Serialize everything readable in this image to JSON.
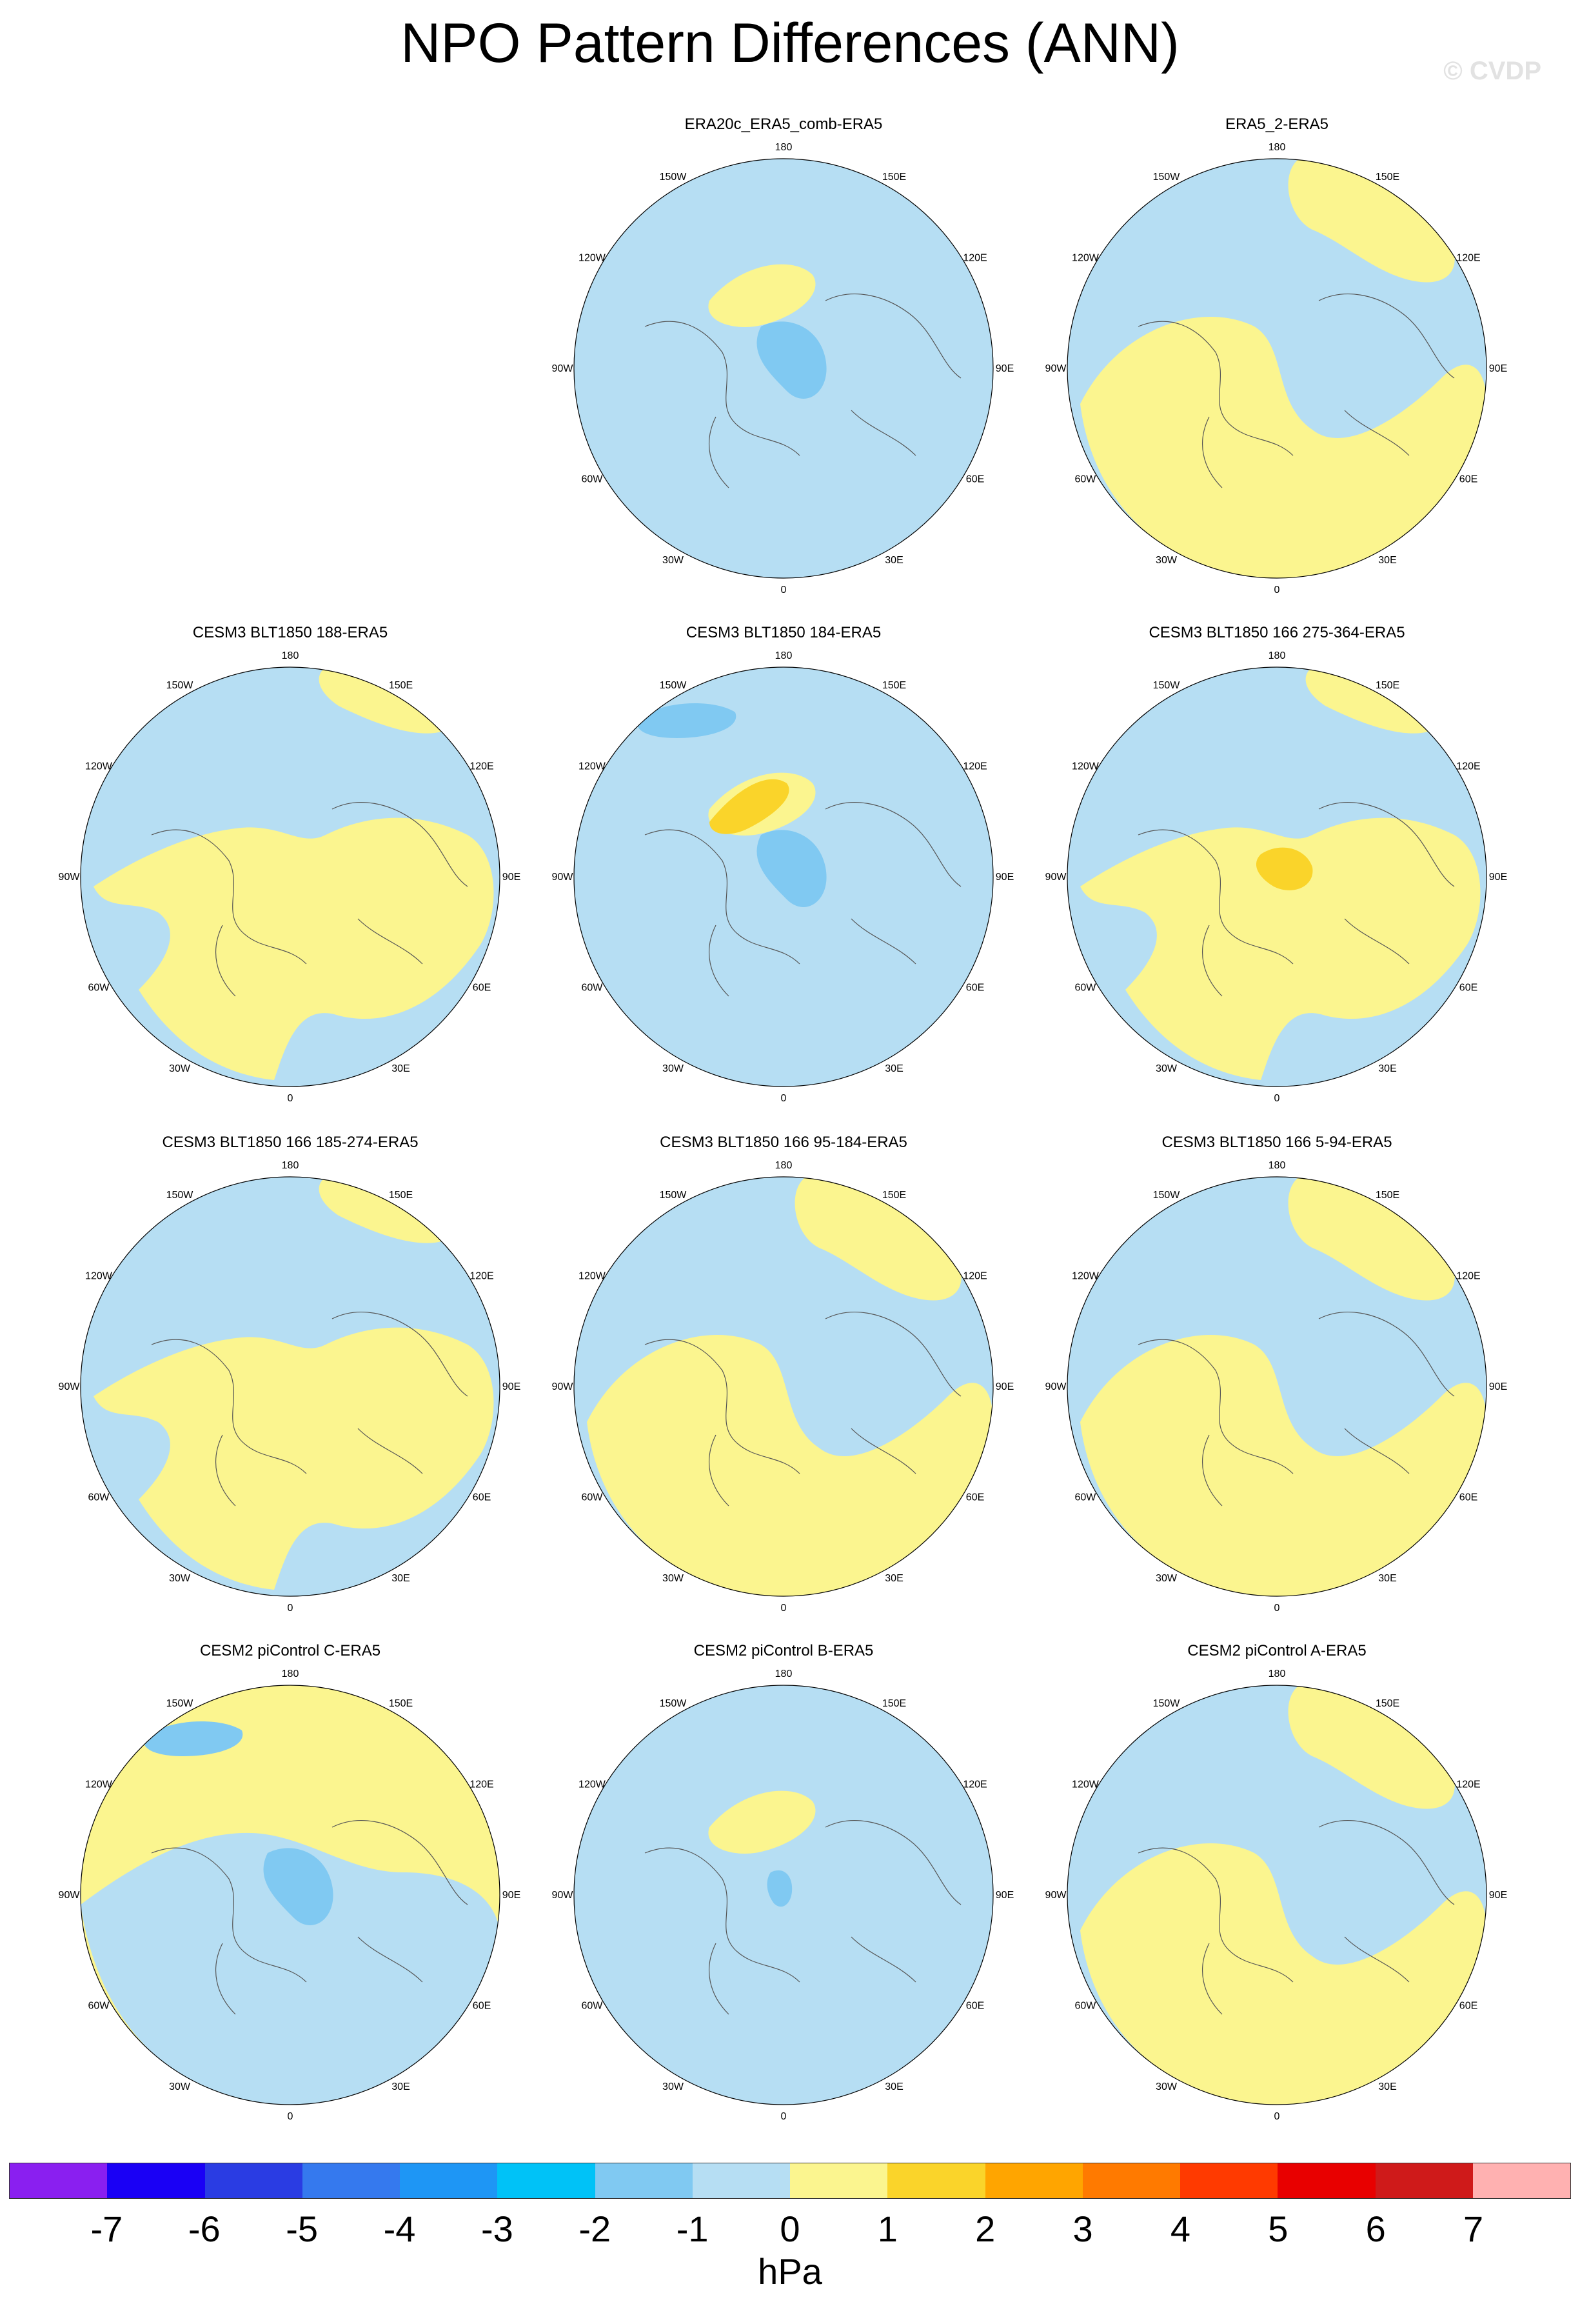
{
  "title": "NPO Pattern Differences (ANN)",
  "credit": "© CVDP",
  "lon_labels": {
    "top": "180",
    "bottom": "0",
    "left_upper": "120W",
    "left_mid": "90W",
    "left_lower": "60W",
    "right_upper": "120E",
    "right_mid": "90E",
    "right_lower": "60E",
    "top_left": "150W",
    "top_right": "150E",
    "bottom_left": "30W",
    "bottom_right": "30E"
  },
  "colors": {
    "neg3": "#5ab1ee",
    "neg2": "#80c9f2",
    "neg1": "#b6def3",
    "pos1": "#fbf58f",
    "pos2": "#fad42a",
    "pos3": "#ffa500"
  },
  "panels": [
    {
      "title": "ERA20c_ERA5_comb-ERA5",
      "base": "neg1",
      "blobs": [
        {
          "type": "pos1",
          "shape": "A"
        },
        {
          "type": "neg2",
          "shape": "B"
        }
      ]
    },
    {
      "title": "ERA5_2-ERA5",
      "base": "neg1",
      "blobs": [
        {
          "type": "pos1",
          "shape": "C"
        }
      ]
    },
    {
      "title": "CESM3 BLT1850 188-ERA5",
      "base": "neg1",
      "blobs": [
        {
          "type": "pos1",
          "shape": "D"
        }
      ]
    },
    {
      "title": "CESM3 BLT1850 184-ERA5",
      "base": "neg1",
      "blobs": [
        {
          "type": "pos1",
          "shape": "A"
        },
        {
          "type": "neg2",
          "shape": "B"
        },
        {
          "type": "pos2",
          "shape": "E"
        },
        {
          "type": "neg2",
          "shape": "F"
        }
      ]
    },
    {
      "title": "CESM3 BLT1850 166 275-364-ERA5",
      "base": "neg1",
      "blobs": [
        {
          "type": "pos1",
          "shape": "D"
        },
        {
          "type": "pos2",
          "shape": "G"
        }
      ]
    },
    {
      "title": "CESM3 BLT1850 166 185-274-ERA5",
      "base": "neg1",
      "blobs": [
        {
          "type": "pos1",
          "shape": "D"
        }
      ]
    },
    {
      "title": "CESM3 BLT1850 166 95-184-ERA5",
      "base": "neg1",
      "blobs": [
        {
          "type": "pos1",
          "shape": "C"
        }
      ]
    },
    {
      "title": "CESM3 BLT1850 166 5-94-ERA5",
      "base": "neg1",
      "blobs": [
        {
          "type": "pos1",
          "shape": "C"
        }
      ]
    },
    {
      "title": "CESM2 piControl C-ERA5",
      "base": "pos1",
      "blobs": [
        {
          "type": "neg1",
          "shape": "H"
        },
        {
          "type": "neg2",
          "shape": "F"
        },
        {
          "type": "neg2",
          "shape": "B"
        }
      ]
    },
    {
      "title": "CESM2 piControl B-ERA5",
      "base": "neg1",
      "blobs": [
        {
          "type": "pos1",
          "shape": "A"
        },
        {
          "type": "neg2",
          "shape": "I"
        }
      ]
    },
    {
      "title": "CESM2 piControl A-ERA5",
      "base": "neg1",
      "blobs": [
        {
          "type": "pos1",
          "shape": "C"
        }
      ]
    }
  ],
  "colorbar": {
    "colors": [
      "#8a1ff0",
      "#1a00f5",
      "#2a3ce3",
      "#3579ee",
      "#1e96f5",
      "#00c2f7",
      "#80c9f2",
      "#b6def3",
      "#fbf58f",
      "#fad42a",
      "#ffa500",
      "#ff7a00",
      "#ff3a00",
      "#e80000",
      "#cf1a1a",
      "#ffb1b1"
    ],
    "ticks": [
      "-7",
      "-6",
      "-5",
      "-4",
      "-3",
      "-2",
      "-1",
      "0",
      "1",
      "2",
      "3",
      "4",
      "5",
      "6",
      "7"
    ],
    "units": "hPa"
  }
}
